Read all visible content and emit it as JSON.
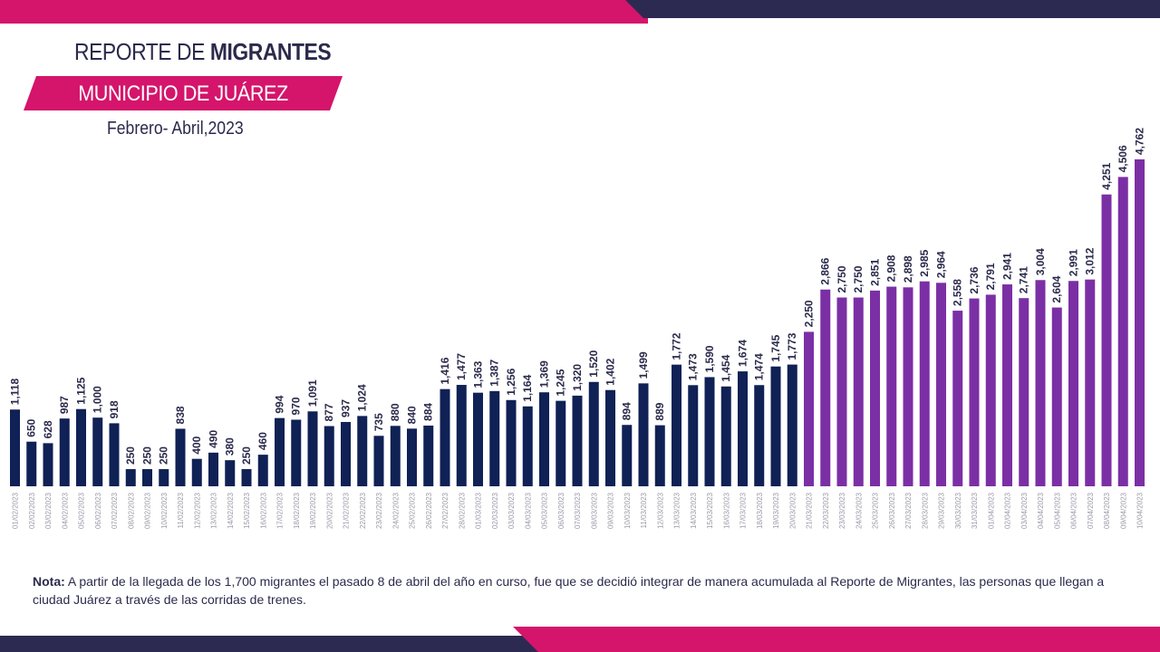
{
  "header": {
    "title_light": "REPORTE DE ",
    "title_bold": "MIGRANTES",
    "municipality": "MUNICIPIO DE JUÁREZ",
    "period": "Febrero- Abril,2023"
  },
  "note": {
    "label": "Nota:",
    "text": " A partir de la llegada de los 1,700 migrantes el pasado 8 de abril del año en curso, fue que se decidió integrar de manera acumulada al Reporte de Migrantes, las personas que llegan a ciudad Juárez a través de las corridas de trenes."
  },
  "colors": {
    "navy": "#0f2155",
    "purple": "#7b2fa5",
    "magenta": "#d4156b",
    "dark_band": "#2d2a52",
    "text": "#2b2a4c",
    "date_label": "#9a9aa8"
  },
  "chart_data": {
    "type": "bar",
    "title": "Reporte de Migrantes - Municipio de Juárez",
    "xlabel": "",
    "ylabel": "",
    "ylim": [
      0,
      4762
    ],
    "categories": [
      "01/02/2023",
      "02/02/2023",
      "03/02/2023",
      "04/02/2023",
      "05/02/2023",
      "06/02/2023",
      "07/02/2023",
      "08/02/2023",
      "09/02/2023",
      "10/02/2023",
      "11/02/2023",
      "12/02/2023",
      "13/02/2023",
      "14/02/2023",
      "15/02/2023",
      "16/02/2023",
      "17/02/2023",
      "18/02/2023",
      "19/02/2023",
      "20/02/2023",
      "21/02/2023",
      "22/02/2023",
      "23/02/2023",
      "24/02/2023",
      "25/02/2023",
      "26/02/2023",
      "27/02/2023",
      "28/02/2023",
      "01/03/2023",
      "02/03/2023",
      "03/03/2023",
      "04/03/2023",
      "05/03/2023",
      "06/03/2023",
      "07/03/2023",
      "08/03/2023",
      "09/03/2023",
      "10/03/2023",
      "11/03/2023",
      "12/03/2023",
      "13/03/2023",
      "14/03/2023",
      "15/03/2023",
      "16/03/2023",
      "17/03/2023",
      "18/03/2023",
      "19/03/2023",
      "20/03/2023",
      "21/03/2023",
      "22/03/2023",
      "23/03/2023",
      "24/03/2023",
      "25/03/2023",
      "26/03/2023",
      "27/03/2023",
      "28/03/2023",
      "29/03/2023",
      "30/03/2023",
      "31/03/2023",
      "01/04/2023",
      "02/04/2023",
      "03/04/2023",
      "04/04/2023",
      "05/04/2023",
      "06/04/2023",
      "07/04/2023",
      "08/04/2023",
      "09/04/2023",
      "10/04/2023"
    ],
    "values": [
      1118,
      650,
      628,
      987,
      1125,
      1000,
      918,
      250,
      250,
      250,
      838,
      400,
      490,
      380,
      250,
      460,
      994,
      970,
      1091,
      877,
      937,
      1024,
      735,
      880,
      840,
      884,
      1416,
      1477,
      1363,
      1387,
      1256,
      1164,
      1369,
      1245,
      1320,
      1520,
      1402,
      894,
      1499,
      889,
      1772,
      1473,
      1590,
      1454,
      1674,
      1474,
      1745,
      1773,
      2250,
      2866,
      2750,
      2750,
      2851,
      2908,
      2898,
      2985,
      2964,
      2558,
      2736,
      2791,
      2941,
      2741,
      3004,
      2604,
      2991,
      3012,
      4251,
      4506,
      4762
    ],
    "labels": [
      "1,118",
      "650",
      "628",
      "987",
      "1,125",
      "1,000",
      "918",
      "250",
      "250",
      "250",
      "838",
      "400",
      "490",
      "380",
      "250",
      "460",
      "994",
      "970",
      "1,091",
      "877",
      "937",
      "1,024",
      "735",
      "880",
      "840",
      "884",
      "1,416",
      "1,477",
      "1,363",
      "1,387",
      "1,256",
      "1,164",
      "1,369",
      "1,245",
      "1,320",
      "1,520",
      "1,402",
      "894",
      "1,499",
      "889",
      "1,772",
      "1,473",
      "1,590",
      "1,454",
      "1,674",
      "1,474",
      "1,745",
      "1,773",
      "2,250",
      "2,866",
      "2,750",
      "2,750",
      "2,851",
      "2,908",
      "2,898",
      "2,985",
      "2,964",
      "2,558",
      "2,736",
      "2,791",
      "2,941",
      "2,741",
      "3,004",
      "2,604",
      "2,991",
      "3,012",
      "4,251",
      "4,506",
      "4,762"
    ],
    "series_color_split_index": 48,
    "series": [
      {
        "name": "Migrantes (01/02/2023 - 20/03/2023)",
        "color": "#0f2155"
      },
      {
        "name": "Migrantes (21/03/2023 - 10/04/2023)",
        "color": "#7b2fa5"
      }
    ]
  }
}
